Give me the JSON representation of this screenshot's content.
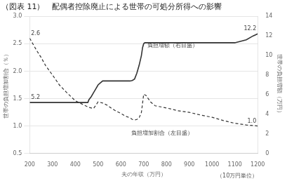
{
  "chart_data": {
    "type": "line",
    "title": "（図表 11）　配偶者控除廃止による世帯の可処分所得への影響",
    "xlabel": "夫の年収（万円）",
    "ylabel": "世帯の負担増加割合（％）",
    "y2label": "世帯の負担増額（万円）",
    "xlim": [
      200,
      1200
    ],
    "xticks": [
      200,
      300,
      400,
      500,
      600,
      700,
      800,
      900,
      1000,
      1100,
      1200
    ],
    "ylim": [
      0.5,
      3.0
    ],
    "yticks": [
      0.5,
      {
        "value": 1,
        "label": "1.0"
      },
      1.5,
      {
        "value": 2,
        "label": "2.0"
      },
      2.5,
      {
        "value": 3,
        "label": "3.0"
      }
    ],
    "y2lim": [
      0,
      14
    ],
    "y2ticks": [
      0,
      2,
      4,
      6,
      8,
      10,
      12,
      14
    ],
    "grid": "y",
    "series": [
      {
        "axis": "y2",
        "color": "#333333",
        "line_style": "solid",
        "x": [
          200,
          250,
          300,
          350,
          400,
          430,
          450,
          455,
          460,
          470,
          480,
          490,
          500,
          510,
          520,
          530,
          540,
          550,
          600,
          640,
          650,
          660,
          670,
          680,
          690,
          695,
          700,
          705,
          710,
          720,
          730,
          750,
          800,
          900,
          1000,
          1050,
          1100,
          1150,
          1180,
          1200
        ],
        "values": [
          5.2,
          5.2,
          5.2,
          5.2,
          5.2,
          5.2,
          5.2,
          5.2,
          5.5,
          5.8,
          6.2,
          6.6,
          7.0,
          7.2,
          7.4,
          7.4,
          7.4,
          7.4,
          7.4,
          7.4,
          7.45,
          7.6,
          8.2,
          9.0,
          10.0,
          10.8,
          11.2,
          11.3,
          11.3,
          11.3,
          11.3,
          11.3,
          11.3,
          11.3,
          11.3,
          11.3,
          11.3,
          11.6,
          12.0,
          12.2
        ]
      },
      {
        "axis": "y",
        "color": "#333333",
        "line_style": "dashed",
        "x": [
          200,
          230,
          250,
          270,
          300,
          330,
          360,
          380,
          400,
          420,
          440,
          460,
          480,
          500,
          520,
          540,
          560,
          580,
          600,
          620,
          640,
          650,
          660,
          670,
          680,
          690,
          700,
          710,
          720,
          730,
          750,
          800,
          850,
          900,
          950,
          1000,
          1050,
          1100,
          1150,
          1180,
          1200
        ],
        "values": [
          2.6,
          2.38,
          2.25,
          2.1,
          1.93,
          1.75,
          1.62,
          1.54,
          1.46,
          1.42,
          1.38,
          1.34,
          1.32,
          1.44,
          1.42,
          1.38,
          1.32,
          1.27,
          1.23,
          1.18,
          1.15,
          1.12,
          1.11,
          1.12,
          1.15,
          1.25,
          1.58,
          1.56,
          1.5,
          1.44,
          1.37,
          1.33,
          1.28,
          1.25,
          1.2,
          1.16,
          1.1,
          1.05,
          1.02,
          1.01,
          1.0
        ]
      }
    ],
    "annotations": [
      {
        "text": "2.6",
        "x": 200,
        "y": 2.6,
        "axis": "y"
      },
      {
        "text": "1.0",
        "x": 1200,
        "y": 1.0,
        "axis": "y"
      },
      {
        "text": "5.2",
        "x": 200,
        "y": 5.2,
        "axis": "y2"
      },
      {
        "text": "12.2",
        "x": 1200,
        "y": 12.2,
        "axis": "y2"
      },
      {
        "text": "負担増額（右目盛）",
        "x": 710,
        "y": 2.38,
        "axis": "y"
      },
      {
        "text": "負担増加割合（左目盛）",
        "x": 640,
        "y": 0.78,
        "axis": "y"
      },
      {
        "text": "（10万円単位）"
      }
    ]
  }
}
